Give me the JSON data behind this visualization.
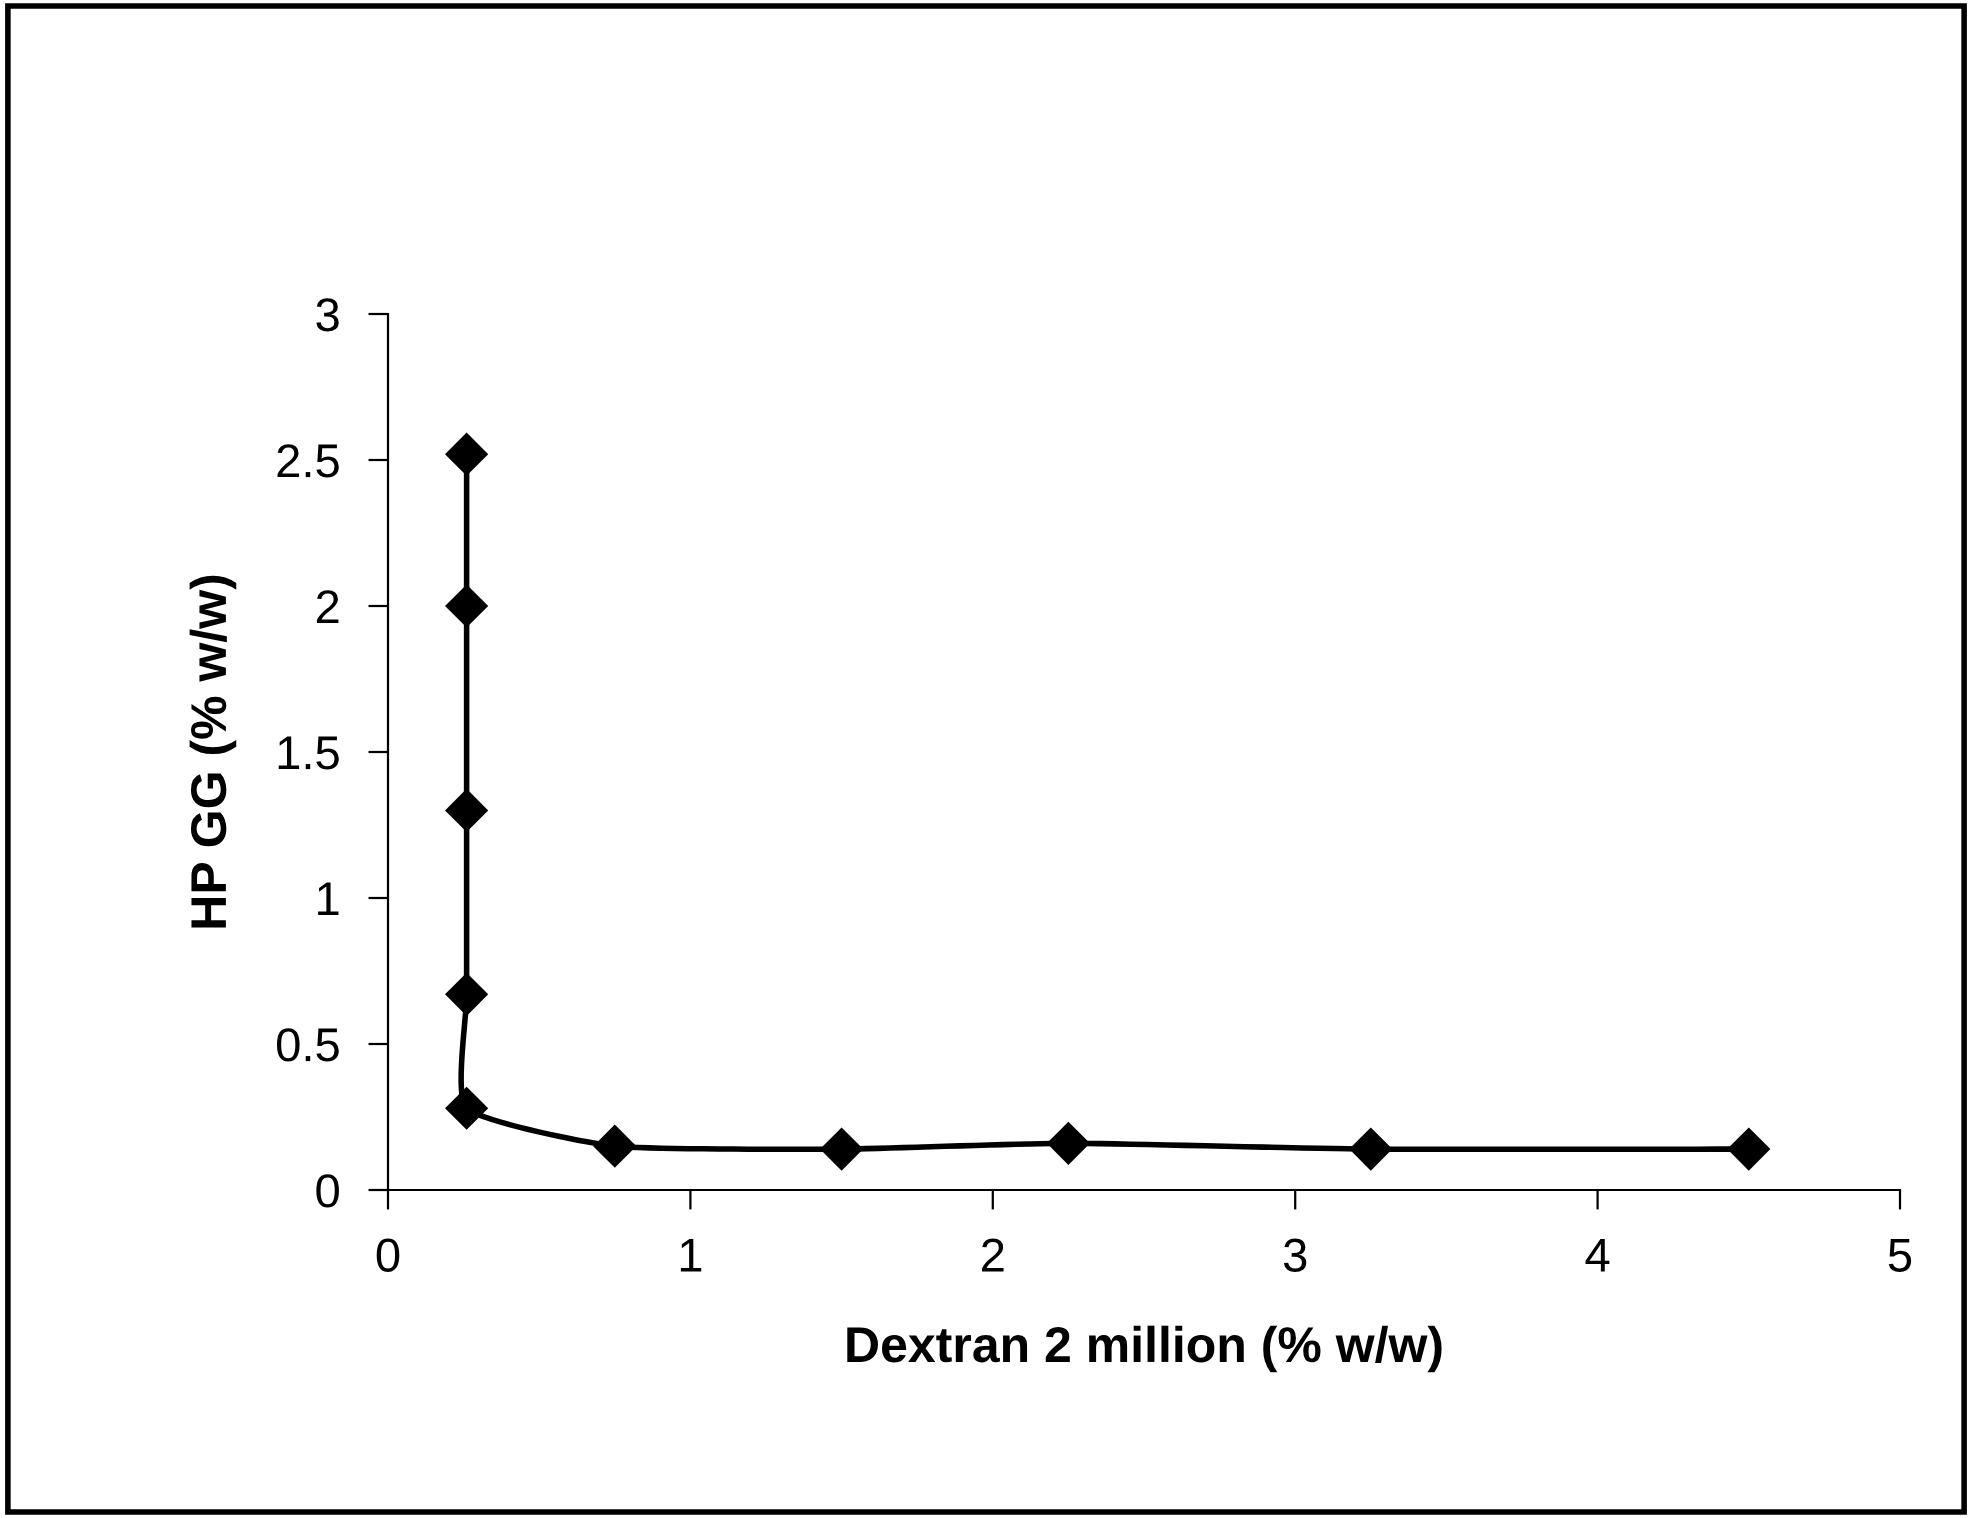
{
  "chart_data": {
    "type": "line",
    "xlabel": "Dextran 2 million (% w/w)",
    "ylabel": "HP GG (% w/w)",
    "x": [
      0.26,
      0.26,
      0.26,
      0.26,
      0.26,
      0.75,
      1.5,
      2.25,
      3.25,
      4.5
    ],
    "series": [
      {
        "color": "#000000",
        "values": [
          2.52,
          2.0,
          1.3,
          0.67,
          0.28,
          0.15,
          0.14,
          0.16,
          0.14,
          0.14
        ]
      }
    ],
    "xlim": [
      0,
      5
    ],
    "xticks": [
      0,
      1,
      2,
      3,
      4,
      5
    ],
    "ylim": [
      0,
      3
    ],
    "yticks": [
      0,
      0.5,
      1,
      1.5,
      2,
      2.5,
      3
    ],
    "marker": "diamond",
    "line_style": "solid",
    "grid": false,
    "legend": false
  }
}
